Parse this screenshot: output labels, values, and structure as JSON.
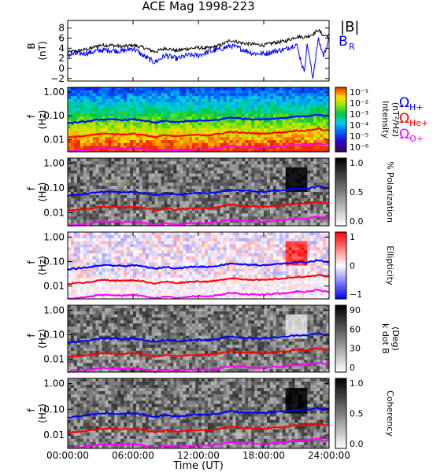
{
  "title": "ACE Mag 1998-223",
  "xlabel": "Time (UT)",
  "x_ticks": [
    "00:00:00",
    "06:00:00",
    "12:00:00",
    "18:00:00",
    "24:00:00"
  ],
  "x_range_hours": [
    0,
    24
  ],
  "freq_ticks": [
    "1.00",
    "0.10",
    "0.01"
  ],
  "freq_range_hz": [
    0.003,
    1.6
  ],
  "colors": {
    "B_total": "#000000",
    "B_R": "#0000ff",
    "omega_H": "#0000ff",
    "omega_He": "#ff0000",
    "omega_O": "#ff00ff"
  },
  "legend": {
    "B_total": "|B|",
    "B_R_main": "B",
    "B_R_sub": "R",
    "omega_symbol": "Ω",
    "omega_H_sub": "H+",
    "omega_He_sub": "He+",
    "omega_O_sub": "O+"
  },
  "panels": [
    {
      "id": "B",
      "ylabel": "B",
      "yunit": "(nT)",
      "colorbar": null
    },
    {
      "id": "intensity",
      "ylabel": "f",
      "yunit": "(Hz)",
      "colorbar": {
        "label": "Intensity",
        "unit": "(nT²/Hz)",
        "colormap": "rainbow",
        "ticks": [
          "10⁻¹",
          "10⁻²",
          "10⁻³",
          "10⁻⁴",
          "10⁻⁵",
          "10⁻⁶"
        ]
      }
    },
    {
      "id": "polarization",
      "ylabel": "f",
      "yunit": "(Hz)",
      "colorbar": {
        "label": "% Polarization",
        "colormap": "gray",
        "ticks": [
          "1.0",
          "0.5",
          "0.0"
        ]
      }
    },
    {
      "id": "ellipticity",
      "ylabel": "f",
      "yunit": "(Hz)",
      "colorbar": {
        "label": "Ellipticity",
        "colormap": "bwr",
        "ticks": [
          "1",
          "0",
          "−1"
        ]
      }
    },
    {
      "id": "kdotb",
      "ylabel": "f",
      "yunit": "(Hz)",
      "colorbar": {
        "label": "k dot B",
        "unit": "(Deg)",
        "colormap": "gray",
        "ticks": [
          "90",
          "60",
          "30",
          "0"
        ]
      }
    },
    {
      "id": "coherency",
      "ylabel": "f",
      "yunit": "(Hz)",
      "colorbar": {
        "label": "Coherency",
        "colormap": "gray",
        "ticks": [
          "1.0",
          "0.5",
          "0.0"
        ]
      }
    }
  ],
  "chart_data": [
    {
      "type": "line",
      "ylim": [
        -2.5,
        9.5
      ],
      "y_ticks": [
        -2,
        0,
        2,
        4,
        6,
        8
      ],
      "x": [
        0,
        1,
        2,
        3,
        4,
        5,
        6,
        7,
        8,
        9,
        10,
        11,
        12,
        13,
        14,
        15,
        16,
        17,
        18,
        19,
        20,
        21,
        21.7,
        22,
        22.5,
        23,
        23.5,
        24
      ],
      "series": [
        {
          "name": "|B|",
          "values": [
            3.2,
            3.5,
            3.9,
            4.6,
            4.6,
            4.3,
            4.6,
            4.1,
            3.3,
            4.0,
            3.5,
            3.9,
            4.1,
            4.0,
            4.6,
            5.6,
            5.0,
            4.8,
            4.6,
            5.1,
            5.4,
            6.3,
            6.2,
            6.3,
            6.8,
            7.6,
            6.5,
            6.5
          ]
        },
        {
          "name": "B_R",
          "values": [
            2.7,
            2.9,
            3.1,
            3.6,
            3.6,
            3.4,
            4.0,
            2.4,
            1.2,
            2.6,
            1.9,
            2.6,
            2.6,
            3.3,
            3.8,
            4.5,
            3.8,
            3.0,
            2.9,
            3.4,
            3.8,
            4.8,
            -0.7,
            4.9,
            -2.0,
            5.8,
            2.5,
            6.0
          ]
        }
      ]
    },
    {
      "type": "line",
      "xlabel": "Time (UT)",
      "ylabel": "f (Hz)",
      "scale": "log",
      "x": [
        0,
        1,
        2,
        3,
        4,
        5,
        6,
        7,
        8,
        9,
        10,
        11,
        12,
        13,
        14,
        15,
        16,
        17,
        18,
        19,
        20,
        21,
        21.7,
        22,
        22.5,
        23,
        23.5,
        24
      ],
      "series": [
        {
          "name": "Ω_H+",
          "values": [
            0.049,
            0.053,
            0.059,
            0.07,
            0.07,
            0.066,
            0.07,
            0.063,
            0.05,
            0.061,
            0.053,
            0.059,
            0.063,
            0.061,
            0.07,
            0.085,
            0.076,
            0.073,
            0.07,
            0.078,
            0.082,
            0.096,
            0.095,
            0.096,
            0.104,
            0.116,
            0.099,
            0.099
          ]
        },
        {
          "name": "Ω_He+",
          "values": [
            0.0122,
            0.0133,
            0.0148,
            0.0175,
            0.0175,
            0.0164,
            0.0175,
            0.0156,
            0.0126,
            0.0152,
            0.0133,
            0.0148,
            0.0156,
            0.0152,
            0.0175,
            0.0213,
            0.0191,
            0.0183,
            0.0175,
            0.0194,
            0.0206,
            0.024,
            0.0236,
            0.024,
            0.0259,
            0.0289,
            0.0248,
            0.0248
          ]
        },
        {
          "name": "Ω_O+",
          "values": [
            0.0031,
            0.0033,
            0.0037,
            0.0044,
            0.0044,
            0.0041,
            0.0044,
            0.0039,
            0.0031,
            0.0038,
            0.0033,
            0.0037,
            0.0039,
            0.0038,
            0.0044,
            0.0053,
            0.0048,
            0.0046,
            0.0044,
            0.0049,
            0.0051,
            0.006,
            0.0059,
            0.006,
            0.0065,
            0.0072,
            0.0062,
            0.0062
          ]
        }
      ]
    }
  ]
}
